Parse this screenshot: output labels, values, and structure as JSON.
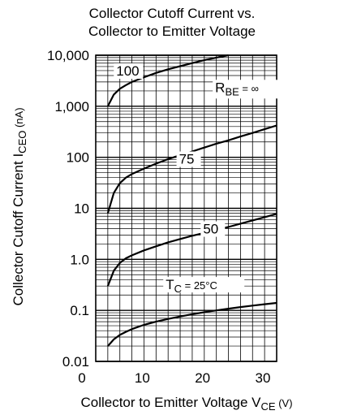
{
  "chart_data": {
    "type": "line",
    "title": [
      "Collector Cutoff Current vs.",
      "Collector to Emitter Voltage"
    ],
    "xlabel": {
      "main": "Collector to Emitter Voltage  V",
      "sub": "CE",
      "unit": "  (V)"
    },
    "ylabel": {
      "main": "Collector Cutoff Current  I",
      "sub": "CEO",
      "unit": "  (nA)"
    },
    "xlim": [
      0,
      30
    ],
    "ylim": [
      0.01,
      10000
    ],
    "yscale": "log",
    "grid": true,
    "x_ticks": [
      "0",
      "10",
      "20",
      "30"
    ],
    "y_ticks": [
      "10,000",
      "1,000",
      "100",
      "10",
      "1.0",
      "0.1",
      "0.01"
    ],
    "annotation": {
      "text": "R",
      "sub": "BE",
      "rest": " = ∞"
    },
    "series": [
      {
        "name": "100",
        "label": "100",
        "x": [
          2,
          3,
          4,
          5,
          6,
          8,
          10,
          12,
          14,
          16,
          18,
          20,
          22
        ],
        "y": [
          1000,
          1700,
          2200,
          2600,
          3000,
          3700,
          4500,
          5300,
          6100,
          7000,
          8000,
          9000,
          10000
        ]
      },
      {
        "name": "75",
        "label": "75",
        "x": [
          2,
          3,
          4,
          5,
          6,
          8,
          10,
          12,
          14,
          16,
          18,
          20,
          22,
          24,
          26,
          28,
          30
        ],
        "y": [
          8,
          20,
          31,
          40,
          47,
          60,
          75,
          92,
          110,
          130,
          155,
          185,
          215,
          255,
          300,
          355,
          420
        ]
      },
      {
        "name": "50",
        "label": "50",
        "x": [
          2,
          3,
          4,
          5,
          6,
          8,
          10,
          12,
          14,
          16,
          18,
          20,
          22,
          24,
          26,
          28,
          30
        ],
        "y": [
          0.3,
          0.6,
          0.85,
          1.05,
          1.2,
          1.5,
          1.8,
          2.15,
          2.5,
          2.9,
          3.3,
          3.8,
          4.3,
          5.0,
          5.8,
          6.7,
          7.8
        ]
      },
      {
        "name": "T_C = 25°C",
        "label": {
          "text": "T",
          "sub": "C",
          "rest": " = 25°C"
        },
        "x": [
          2,
          3,
          4,
          5,
          6,
          8,
          10,
          12,
          14,
          16,
          18,
          20,
          22,
          24,
          26,
          28,
          30
        ],
        "y": [
          0.02,
          0.027,
          0.033,
          0.038,
          0.043,
          0.052,
          0.06,
          0.068,
          0.076,
          0.084,
          0.092,
          0.1,
          0.108,
          0.116,
          0.124,
          0.132,
          0.14
        ]
      }
    ]
  }
}
